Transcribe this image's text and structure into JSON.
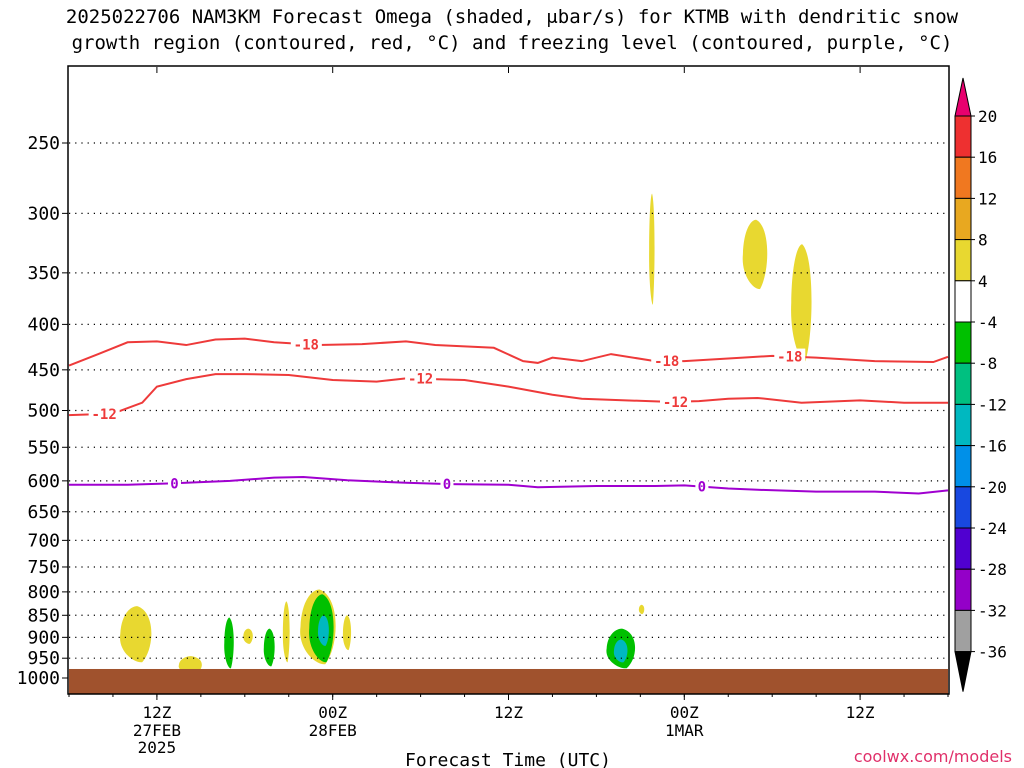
{
  "title_line1": "2025022706 NAM3KM Forecast Omega (shaded, μbar/s) for KTMB with dendritic snow",
  "title_line2": "growth region (contoured, red, °C) and freezing level (contoured, purple, °C)",
  "credit": "coolwx.com/models",
  "chart_data": {
    "type": "time-height cross section",
    "xlabel": "Forecast Time (UTC)",
    "x_ticks": [
      {
        "label": "12Z",
        "sub": [
          "27FEB",
          "2025"
        ],
        "hour": 6
      },
      {
        "label": "00Z",
        "sub": [
          "28FEB"
        ],
        "hour": 18
      },
      {
        "label": "12Z",
        "sub": [],
        "hour": 30
      },
      {
        "label": "00Z",
        "sub": [
          "1MAR"
        ],
        "hour": 42
      },
      {
        "label": "12Z",
        "sub": [],
        "hour": 54
      }
    ],
    "x_range_hours": [
      0,
      60
    ],
    "y_pressure_hpa": [
      250,
      300,
      350,
      400,
      450,
      500,
      550,
      600,
      650,
      700,
      750,
      800,
      850,
      900,
      950,
      1000
    ],
    "y_range_hpa": [
      200,
      1013
    ],
    "y_scale": "log-pressure",
    "grid": "dotted horizontal at pressure levels",
    "colorbar": {
      "labels": [
        "20",
        "16",
        "12",
        "8",
        "4",
        "-4",
        "-8",
        "-12",
        "-16",
        "-20",
        "-24",
        "-28",
        "-32",
        "-36"
      ],
      "colors": [
        "#e8006e",
        "#ee3030",
        "#f07820",
        "#e8a820",
        "#e8d830",
        "#ffffff",
        "#00c000",
        "#00c080",
        "#00b8c0",
        "#0090e8",
        "#1848e0",
        "#5000d0",
        "#9400c8",
        "#a0a0a0",
        "#000000"
      ]
    },
    "contours": [
      {
        "name": "-18",
        "color": "#ee3a3a",
        "labels": [
          "-18",
          "-18",
          "-18"
        ],
        "points": [
          [
            0,
            445
          ],
          [
            2,
            432
          ],
          [
            4,
            419
          ],
          [
            6,
            418
          ],
          [
            8,
            422
          ],
          [
            10,
            416
          ],
          [
            12,
            415
          ],
          [
            14,
            419
          ],
          [
            17,
            422
          ],
          [
            20,
            421
          ],
          [
            23,
            418
          ],
          [
            25,
            422
          ],
          [
            29,
            425
          ],
          [
            31,
            440
          ],
          [
            32,
            442
          ],
          [
            33,
            436
          ],
          [
            35,
            440
          ],
          [
            37,
            432
          ],
          [
            40,
            440
          ],
          [
            42,
            440
          ],
          [
            46,
            436
          ],
          [
            48,
            434
          ],
          [
            51,
            436
          ],
          [
            55,
            440
          ],
          [
            59,
            441
          ],
          [
            60,
            435
          ]
        ]
      },
      {
        "name": "-12",
        "color": "#ee3a3a",
        "labels": [
          "-12",
          "-12",
          "-12"
        ],
        "points": [
          [
            0,
            506
          ],
          [
            3,
            504
          ],
          [
            5,
            490
          ],
          [
            6,
            470
          ],
          [
            8,
            461
          ],
          [
            10,
            455
          ],
          [
            12,
            455
          ],
          [
            15,
            456
          ],
          [
            18,
            462
          ],
          [
            21,
            464
          ],
          [
            23,
            460
          ],
          [
            27,
            462
          ],
          [
            30,
            470
          ],
          [
            33,
            480
          ],
          [
            35,
            485
          ],
          [
            38,
            487
          ],
          [
            41,
            489
          ],
          [
            43,
            488
          ],
          [
            45,
            485
          ],
          [
            47,
            484
          ],
          [
            50,
            490
          ],
          [
            54,
            487
          ],
          [
            57,
            490
          ],
          [
            60,
            490
          ]
        ]
      },
      {
        "name": "0",
        "color": "#a000d0",
        "labels": [
          "0",
          "0",
          "0"
        ],
        "points": [
          [
            0,
            606
          ],
          [
            4,
            606
          ],
          [
            7,
            604
          ],
          [
            11,
            600
          ],
          [
            14,
            595
          ],
          [
            16,
            594
          ],
          [
            19,
            599
          ],
          [
            23,
            603
          ],
          [
            26,
            605
          ],
          [
            30,
            606
          ],
          [
            32,
            610
          ],
          [
            36,
            608
          ],
          [
            40,
            608
          ],
          [
            42,
            607
          ],
          [
            45,
            612
          ],
          [
            47,
            614
          ],
          [
            51,
            617
          ],
          [
            55,
            617
          ],
          [
            58,
            620
          ],
          [
            60,
            615
          ]
        ]
      }
    ],
    "omega_blobs": [
      {
        "value": 4,
        "color": "#e8d830",
        "hours": [
          3.5,
          5.8
        ],
        "hpa": [
          830,
          960
        ]
      },
      {
        "value": 4,
        "color": "#e8d830",
        "hours": [
          7.5,
          9.2
        ],
        "hpa": [
          945,
          990
        ]
      },
      {
        "value": 4,
        "color": "#e8d830",
        "hours": [
          11.9,
          12.6
        ],
        "hpa": [
          880,
          915
        ]
      },
      {
        "value": 4,
        "color": "#e8d830",
        "hours": [
          14.6,
          15.1
        ],
        "hpa": [
          820,
          960
        ]
      },
      {
        "value": -4,
        "color": "#00c000",
        "hours": [
          10.6,
          11.3
        ],
        "hpa": [
          855,
          975
        ]
      },
      {
        "value": -4,
        "color": "#00c000",
        "hours": [
          13.3,
          14.1
        ],
        "hpa": [
          880,
          970
        ]
      },
      {
        "value": 4,
        "color": "#e8d830",
        "hours": [
          15.8,
          18.4
        ],
        "hpa": [
          795,
          965
        ]
      },
      {
        "value": -4,
        "color": "#00c000",
        "hours": [
          16.4,
          18.2
        ],
        "hpa": [
          805,
          960
        ]
      },
      {
        "value": -12,
        "color": "#00b8c0",
        "hours": [
          17.0,
          17.8
        ],
        "hpa": [
          850,
          920
        ]
      },
      {
        "value": 4,
        "color": "#e8d830",
        "hours": [
          18.7,
          19.3
        ],
        "hpa": [
          850,
          930
        ]
      },
      {
        "value": -4,
        "color": "#00c000",
        "hours": [
          36.7,
          38.8
        ],
        "hpa": [
          880,
          975
        ]
      },
      {
        "value": -12,
        "color": "#00b8c0",
        "hours": [
          37.2,
          38.2
        ],
        "hpa": [
          905,
          960
        ]
      },
      {
        "value": 4,
        "color": "#e8d830",
        "hours": [
          38.9,
          39.3
        ],
        "hpa": [
          827,
          847
        ]
      },
      {
        "value": 4,
        "color": "#e8d830",
        "hours": [
          39.6,
          40.0
        ],
        "hpa": [
          285,
          380
        ]
      },
      {
        "value": 4,
        "color": "#e8d830",
        "hours": [
          46.0,
          47.8
        ],
        "hpa": [
          305,
          365
        ]
      },
      {
        "value": 4,
        "color": "#e8d830",
        "hours": [
          49.3,
          50.8
        ],
        "hpa": [
          325,
          440
        ]
      }
    ],
    "terrain": {
      "color": "#a0522d",
      "hpa": 1013
    }
  }
}
